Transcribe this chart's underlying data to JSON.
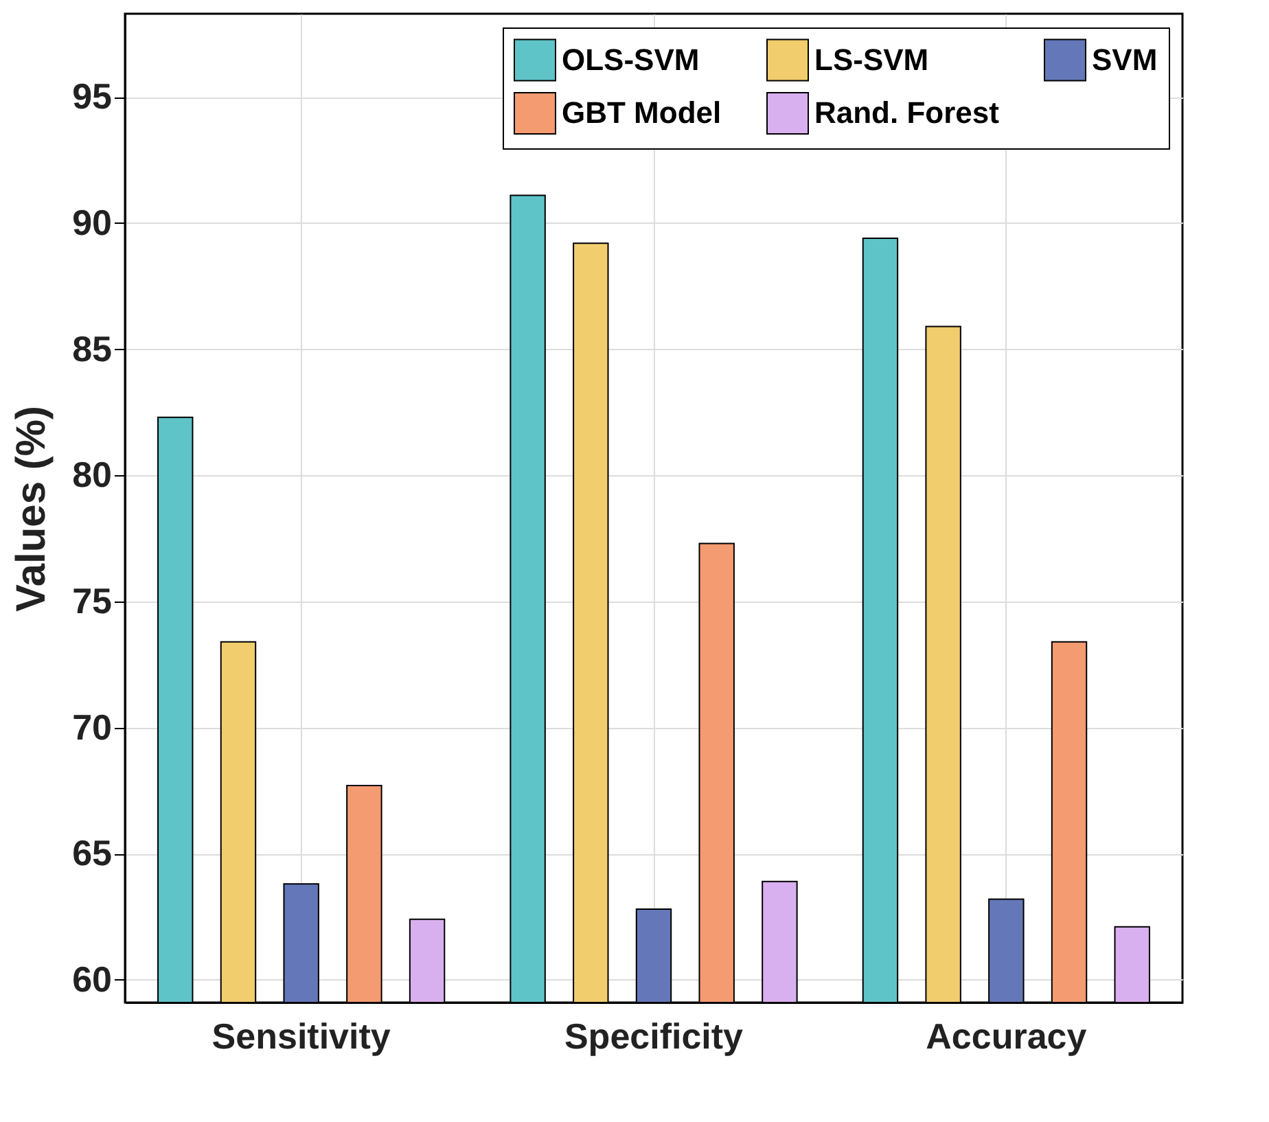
{
  "chart_data": {
    "type": "bar",
    "ylabel": "Values (%)",
    "categories": [
      "Sensitivity",
      "Specificity",
      "Accuracy"
    ],
    "series": [
      {
        "name": "OLS-SVM",
        "color": "#5fc4c8",
        "values": [
          82.3,
          91.1,
          89.4
        ]
      },
      {
        "name": "LS-SVM",
        "color": "#f2cd6e",
        "values": [
          73.4,
          89.2,
          85.9
        ]
      },
      {
        "name": "SVM",
        "color": "#6477b8",
        "values": [
          63.8,
          62.8,
          63.2
        ]
      },
      {
        "name": "GBT Model",
        "color": "#f59b72",
        "values": [
          67.7,
          77.3,
          73.4
        ]
      },
      {
        "name": "Rand. Forest",
        "color": "#d9b0ef",
        "values": [
          62.4,
          63.9,
          62.1
        ]
      }
    ],
    "ylim": [
      59.1,
      98.3
    ],
    "yticks": [
      60,
      65,
      70,
      75,
      80,
      85,
      90,
      95
    ],
    "grid": true,
    "legend": "top right"
  }
}
